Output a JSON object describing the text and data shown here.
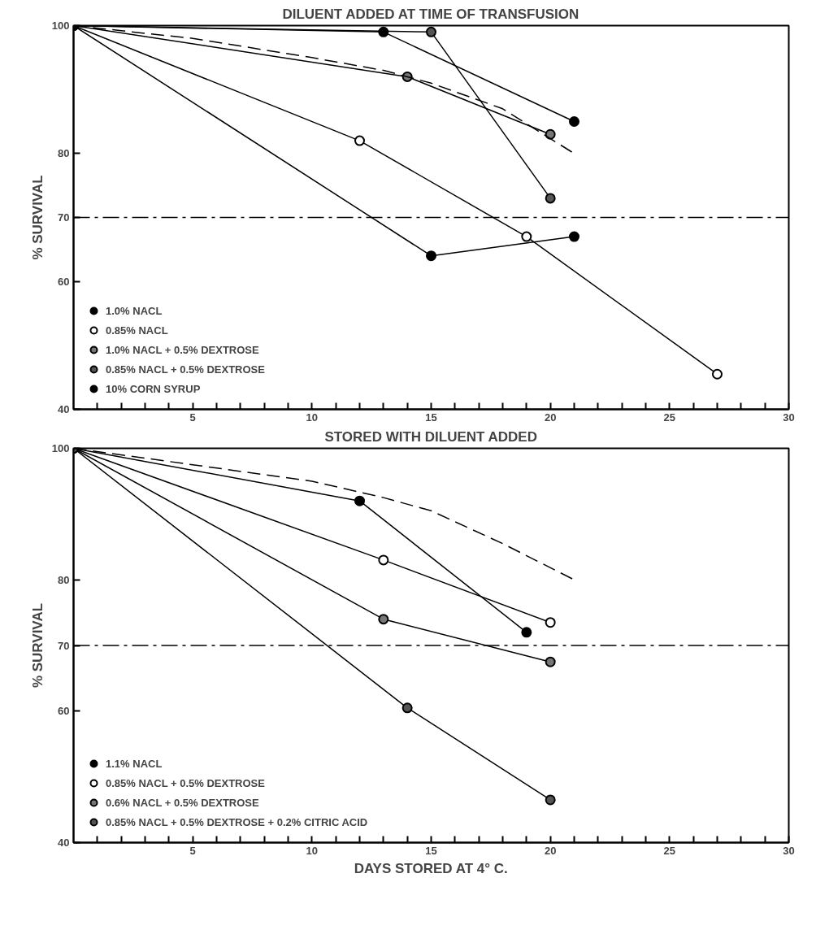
{
  "chart_data": [
    {
      "type": "line",
      "title": "DILUENT ADDED AT TIME OF TRANSFUSION",
      "ylabel": "% SURVIVAL",
      "xlim": [
        0,
        30
      ],
      "ylim": [
        40,
        100
      ],
      "yticks": [
        40,
        60,
        70,
        80,
        100
      ],
      "xticks": [
        {
          "value": 1,
          "label": null
        },
        {
          "value": 2,
          "label": null
        },
        {
          "value": 3,
          "label": null
        },
        {
          "value": 4,
          "label": null
        },
        5,
        {
          "value": 6,
          "label": null
        },
        {
          "value": 7,
          "label": null
        },
        {
          "value": 8,
          "label": null
        },
        {
          "value": 9,
          "label": null
        },
        10,
        {
          "value": 11,
          "label": null
        },
        {
          "value": 12,
          "label": null
        },
        {
          "value": 13,
          "label": null
        },
        {
          "value": 14,
          "label": null
        },
        15,
        {
          "value": 16,
          "label": null
        },
        {
          "value": 17,
          "label": null
        },
        {
          "value": 18,
          "label": null
        },
        {
          "value": 19,
          "label": null
        },
        20,
        {
          "value": 21,
          "label": null
        },
        {
          "value": 22,
          "label": null
        },
        {
          "value": 23,
          "label": null
        },
        {
          "value": 24,
          "label": null
        },
        25,
        {
          "value": 26,
          "label": null
        },
        {
          "value": 27,
          "label": null
        },
        {
          "value": 28,
          "label": null
        },
        {
          "value": 29,
          "label": null
        },
        30
      ],
      "grid": false,
      "legend": "bottom left",
      "marker": "circle",
      "line_style": "solid",
      "ref_lines": [
        {
          "axis": "y",
          "value": 70,
          "line_style": "dashdot"
        }
      ],
      "series": [
        {
          "name": "1.0% NACL",
          "color": "#000000",
          "x": [
            0,
            15,
            21
          ],
          "values": [
            100,
            64,
            67
          ]
        },
        {
          "name": "0.85% NACL",
          "color": "#ffffff",
          "x": [
            0,
            12,
            19,
            27
          ],
          "values": [
            100,
            82,
            67,
            45.5
          ]
        },
        {
          "name": "1.0% NACL + 0.5% DEXTROSE",
          "color": "#777777",
          "x": [
            0,
            14,
            20
          ],
          "values": [
            100,
            92,
            83
          ]
        },
        {
          "name": "0.85% NACL + 0.5% DEXTROSE",
          "color": "#555555",
          "x": [
            0,
            15,
            20
          ],
          "values": [
            100,
            99,
            73
          ]
        },
        {
          "name": "10% CORN SYRUP",
          "color": "#000000",
          "x": [
            0,
            13,
            21
          ],
          "values": [
            100,
            99,
            85
          ]
        },
        {
          "color": "#000000",
          "marker": "none",
          "line_style": "dashed",
          "x": [
            0,
            5,
            10,
            13,
            15,
            18,
            21
          ],
          "values": [
            100,
            98,
            95,
            93,
            91,
            87,
            80
          ]
        }
      ]
    },
    {
      "type": "line",
      "title": "STORED WITH DILUENT ADDED",
      "xlabel": "DAYS STORED AT 4° C.",
      "ylabel": "% SURVIVAL",
      "xlim": [
        0,
        30
      ],
      "ylim": [
        40,
        100
      ],
      "yticks": [
        40,
        60,
        70,
        80,
        100
      ],
      "xticks": [
        {
          "value": 1,
          "label": null
        },
        {
          "value": 2,
          "label": null
        },
        {
          "value": 3,
          "label": null
        },
        {
          "value": 4,
          "label": null
        },
        5,
        {
          "value": 6,
          "label": null
        },
        {
          "value": 7,
          "label": null
        },
        {
          "value": 8,
          "label": null
        },
        {
          "value": 9,
          "label": null
        },
        10,
        {
          "value": 11,
          "label": null
        },
        {
          "value": 12,
          "label": null
        },
        {
          "value": 13,
          "label": null
        },
        {
          "value": 14,
          "label": null
        },
        15,
        {
          "value": 16,
          "label": null
        },
        {
          "value": 17,
          "label": null
        },
        {
          "value": 18,
          "label": null
        },
        {
          "value": 19,
          "label": null
        },
        20,
        {
          "value": 21,
          "label": null
        },
        {
          "value": 22,
          "label": null
        },
        {
          "value": 23,
          "label": null
        },
        {
          "value": 24,
          "label": null
        },
        25,
        {
          "value": 26,
          "label": null
        },
        {
          "value": 27,
          "label": null
        },
        {
          "value": 28,
          "label": null
        },
        {
          "value": 29,
          "label": null
        },
        30
      ],
      "grid": false,
      "legend": "bottom left",
      "marker": "circle",
      "line_style": "solid",
      "ref_lines": [
        {
          "axis": "y",
          "value": 70,
          "line_style": "dashdot"
        }
      ],
      "series": [
        {
          "name": "1.1% NACL",
          "color": "#000000",
          "x": [
            0,
            12,
            19
          ],
          "values": [
            100,
            92,
            72
          ]
        },
        {
          "name": "0.85% NACL + 0.5% DEXTROSE",
          "color": "#ffffff",
          "x": [
            0,
            13,
            20
          ],
          "values": [
            100,
            83,
            73.5
          ]
        },
        {
          "name": "0.6% NACL + 0.5% DEXTROSE",
          "color": "#777777",
          "x": [
            0,
            13,
            20
          ],
          "values": [
            100,
            74,
            67.5
          ]
        },
        {
          "name": "0.85% NACL + 0.5% DEXTROSE + 0.2% CITRIC ACID",
          "color": "#555555",
          "x": [
            0,
            14,
            20
          ],
          "values": [
            100,
            60.5,
            46.5
          ]
        },
        {
          "color": "#000000",
          "marker": "none",
          "line_style": "dashed",
          "x": [
            0,
            5,
            10,
            13,
            15,
            18,
            21
          ],
          "values": [
            100,
            97.5,
            95,
            92.5,
            90.5,
            85.5,
            80
          ]
        }
      ]
    }
  ]
}
